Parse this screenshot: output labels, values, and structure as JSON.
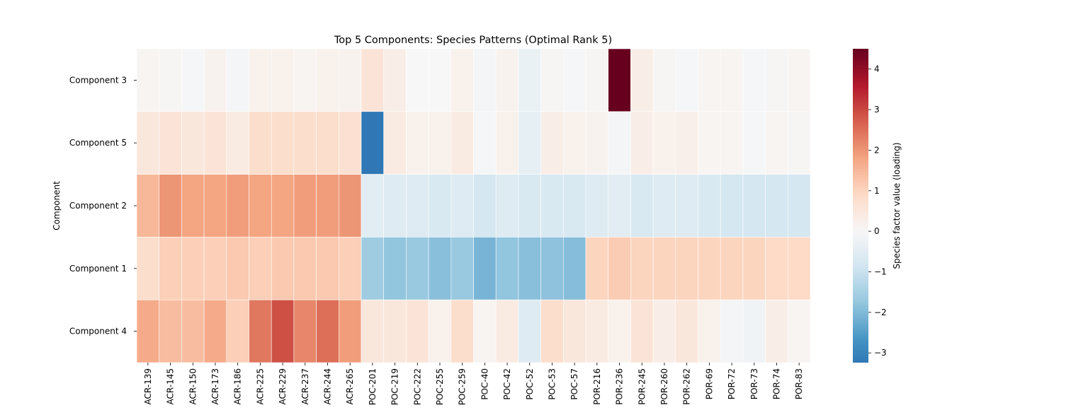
{
  "chart_data": {
    "type": "heatmap",
    "title": "Top 5 Components: Species Patterns (Optimal Rank 5)",
    "xlabel": "",
    "ylabel": "Component",
    "colorbar_label": "Species factor value (loading)",
    "colormap": "RdBu_r",
    "center": 0,
    "colorbar_range": [
      -3.24,
      4.5
    ],
    "colorbar_ticks": [
      -3,
      -2,
      -1,
      0,
      1,
      2,
      3,
      4
    ],
    "colorbar_tick_labels": [
      "−3",
      "−2",
      "−1",
      "0",
      "1",
      "2",
      "3",
      "4"
    ],
    "columns": [
      "ACR-139",
      "ACR-145",
      "ACR-150",
      "ACR-173",
      "ACR-186",
      "ACR-225",
      "ACR-229",
      "ACR-237",
      "ACR-244",
      "ACR-265",
      "POC-201",
      "POC-219",
      "POC-222",
      "POC-255",
      "POC-259",
      "POC-40",
      "POC-42",
      "POC-52",
      "POC-53",
      "POC-57",
      "POR-216",
      "POR-236",
      "POR-245",
      "POR-260",
      "POR-262",
      "POR-69",
      "POR-72",
      "POR-73",
      "POR-74",
      "POR-83"
    ],
    "rows": [
      "Component 3",
      "Component 5",
      "Component 2",
      "Component 1",
      "Component 4"
    ],
    "values": [
      [
        0.1,
        0.05,
        -0.05,
        0.15,
        -0.1,
        0.2,
        0.2,
        0.1,
        0.2,
        0.15,
        0.6,
        0.3,
        0.0,
        0.0,
        0.2,
        -0.1,
        0.15,
        -0.3,
        0.05,
        -0.05,
        0.05,
        4.5,
        0.3,
        0.05,
        -0.05,
        0.1,
        0.1,
        -0.05,
        0.05,
        0.1
      ],
      [
        0.5,
        0.6,
        0.5,
        0.6,
        0.4,
        0.8,
        0.8,
        0.8,
        0.8,
        0.7,
        -3.24,
        0.4,
        0.2,
        0.2,
        0.4,
        -0.05,
        0.2,
        -0.4,
        0.3,
        0.2,
        0.15,
        -0.1,
        0.3,
        0.2,
        0.25,
        0.1,
        0.1,
        -0.05,
        0.1,
        0.05
      ],
      [
        1.5,
        2.0,
        1.8,
        1.8,
        1.9,
        1.8,
        1.8,
        1.9,
        1.9,
        2.0,
        -0.5,
        -0.6,
        -0.6,
        -0.7,
        -0.6,
        -0.8,
        -0.6,
        -0.7,
        -0.7,
        -0.7,
        -0.6,
        -0.5,
        -0.7,
        -0.6,
        -0.6,
        -0.7,
        -0.8,
        -0.8,
        -0.8,
        -0.8
      ],
      [
        0.8,
        1.1,
        1.1,
        1.1,
        1.2,
        1.1,
        1.2,
        1.2,
        1.2,
        1.1,
        -1.6,
        -1.8,
        -1.7,
        -1.9,
        -1.7,
        -2.1,
        -1.8,
        -1.9,
        -1.85,
        -1.95,
        1.0,
        1.15,
        1.0,
        1.0,
        1.0,
        1.0,
        1.0,
        1.0,
        0.9,
        0.9
      ],
      [
        1.7,
        1.4,
        1.4,
        1.7,
        1.1,
        2.4,
        2.9,
        2.2,
        2.5,
        1.9,
        0.5,
        0.5,
        0.6,
        0.2,
        0.8,
        0.1,
        0.4,
        -0.6,
        0.8,
        0.5,
        0.4,
        0.2,
        0.6,
        0.3,
        0.5,
        0.2,
        -0.1,
        -0.2,
        0.3,
        0.1
      ]
    ]
  }
}
